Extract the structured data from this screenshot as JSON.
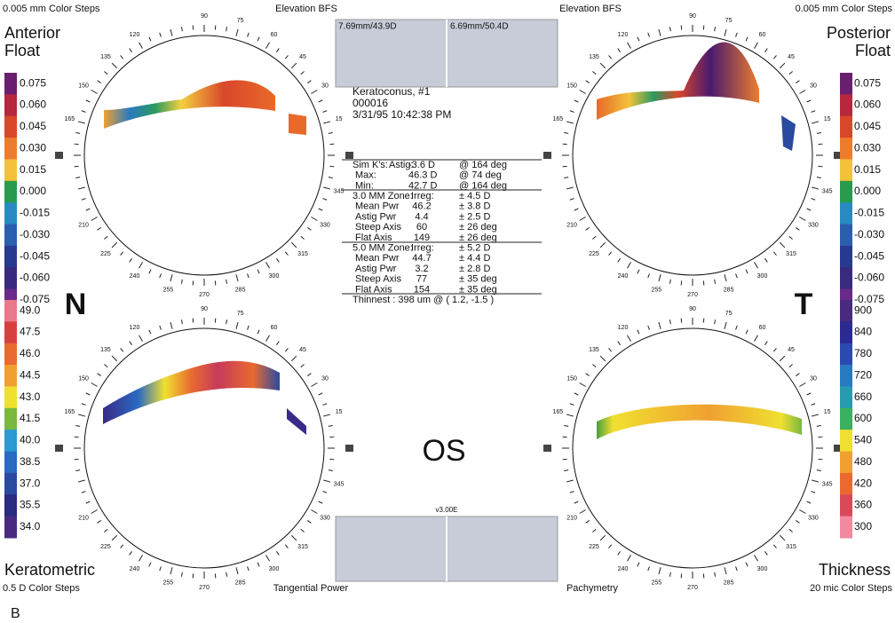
{
  "corners": {
    "top_left": "0.005 mm Color Steps",
    "top_right": "0.005 mm Color Steps",
    "bottom_left": "0.5 D Color Steps",
    "bottom_right": "20 mic Color Steps"
  },
  "maps": [
    {
      "title": [
        "Anterior",
        "Float"
      ],
      "caption": "Elevation BFS",
      "scale": [
        "0.075",
        "0.060",
        "0.045",
        "0.030",
        "0.015",
        "0.000",
        "-0.015",
        "-0.030",
        "-0.045",
        "-0.060",
        "-0.075"
      ]
    },
    {
      "title": [
        "Posterior",
        "Float"
      ],
      "caption": "Elevation BFS",
      "scale": [
        "0.075",
        "0.060",
        "0.045",
        "0.030",
        "0.015",
        "0.000",
        "-0.015",
        "-0.030",
        "-0.045",
        "-0.060",
        "-0.075"
      ]
    },
    {
      "title": [
        "Keratometric"
      ],
      "caption": "Tangential Power",
      "scale": [
        "49.0",
        "47.5",
        "46.0",
        "44.5",
        "43.0",
        "41.5",
        "40.0",
        "38.5",
        "37.0",
        "35.5",
        "34.0"
      ]
    },
    {
      "title": [
        "Thickness"
      ],
      "caption": "Pachymetry",
      "scale": [
        "900",
        "840",
        "780",
        "720",
        "660",
        "600",
        "540",
        "480",
        "420",
        "360",
        "300"
      ]
    }
  ],
  "angle_labels": [
    "90",
    "75",
    "60",
    "45",
    "30",
    "15",
    "345",
    "330",
    "315",
    "300",
    "285",
    "270",
    "255",
    "240",
    "225",
    "210",
    "165",
    "150",
    "135",
    "120"
  ],
  "orientation": {
    "left": "N",
    "right": "T"
  },
  "best_fit": [
    "7.69mm/43.9D",
    "6.69mm/50.4D"
  ],
  "patient": [
    "Keratoconus, #1",
    "000016",
    "3/31/95 10:42:38 PM"
  ],
  "table": {
    "rows": [
      {
        "heading": "Sim K's:",
        "label": "Astig:",
        "value": "-3.6 D",
        "range": "@ 164 deg",
        "color": "#c0203a"
      },
      {
        "label": "Max:",
        "value": "46.3 D",
        "range": "@ 74 deg",
        "color": "#c0203a"
      },
      {
        "label": "Min:",
        "value": "42.7 D",
        "range": "@ 164 deg",
        "color": "#1a3a8a"
      },
      {
        "heading": "3.0 MM Zone:",
        "label": "Irreg:",
        "range": "± 4.5 D",
        "color": "#000000"
      },
      {
        "label": "Mean Pwr",
        "value": "46.2",
        "range": "± 3.8 D",
        "color": "#000000"
      },
      {
        "label": "Astig Pwr",
        "value": "4.4",
        "range": "± 2.5 D",
        "color": "#000000"
      },
      {
        "label": "Steep Axis",
        "value": "60",
        "range": "± 26 deg",
        "color": "#c0203a"
      },
      {
        "label": "Flat Axis",
        "value": "149",
        "range": "± 26 deg",
        "color": "#1a3a8a"
      },
      {
        "heading": "5.0 MM Zone:",
        "label": "Irreg:",
        "range": "± 5.2 D",
        "color": "#000000"
      },
      {
        "label": "Mean Pwr",
        "value": "44.7",
        "range": "± 4.4 D",
        "color": "#000000"
      },
      {
        "label": "Astig Pwr",
        "value": "3.2",
        "range": "± 2.8 D",
        "color": "#000000"
      },
      {
        "label": "Steep Axis",
        "value": "77",
        "range": "± 35 deg",
        "color": "#c0203a"
      },
      {
        "label": "Flat Axis",
        "value": "154",
        "range": "± 35 deg",
        "color": "#1a3a8a"
      },
      {
        "heading": "Thinnest : 398 um @ ( 1.2, -1.5 )",
        "color": "#000000"
      }
    ]
  },
  "eye": "OS",
  "version": "v3.00E",
  "panel": "B"
}
